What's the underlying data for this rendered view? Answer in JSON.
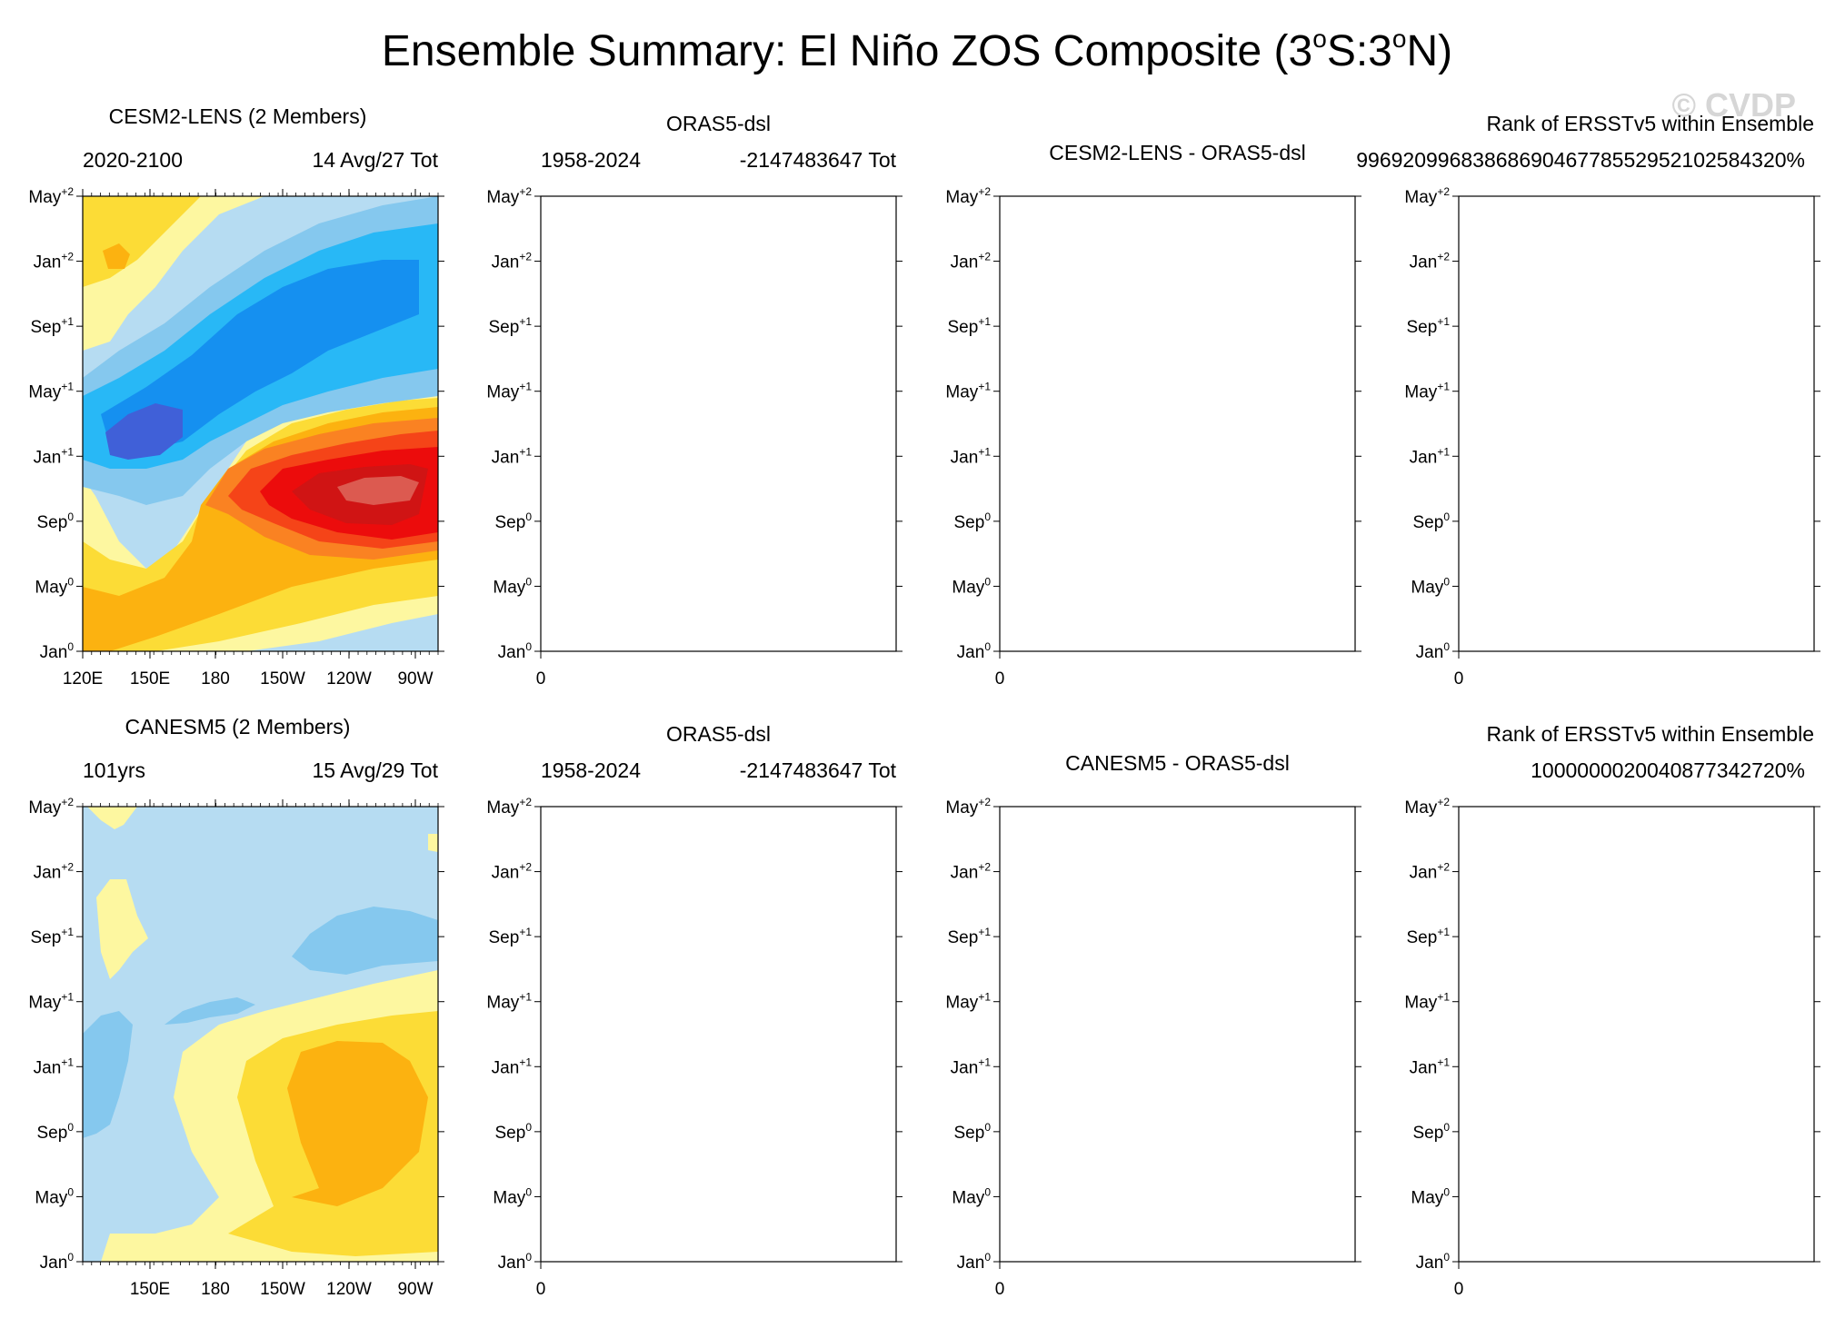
{
  "title": {
    "main": "Ensemble Summary: El Niño ZOS Composite (3",
    "deg1": "o",
    "mid": "S:3",
    "deg2": "o",
    "end": "N)"
  },
  "watermark": "© CVDP",
  "y_ticks": [
    {
      "month": "May",
      "sup": "+2"
    },
    {
      "month": "Jan",
      "sup": "+2"
    },
    {
      "month": "Sep",
      "sup": "+1"
    },
    {
      "month": "May",
      "sup": "+1"
    },
    {
      "month": "Jan",
      "sup": "+1"
    },
    {
      "month": "Sep",
      "sup": "0"
    },
    {
      "month": "May",
      "sup": "0"
    },
    {
      "month": "Jan",
      "sup": "0"
    }
  ],
  "colors": {
    "c_neg4": "#4060d8",
    "c_neg3": "#1590f0",
    "c_neg2": "#28b8f6",
    "c_neg1": "#85c8ee",
    "c_neg0": "#b6dcf2",
    "c_pos0": "#fdf7a0",
    "c_pos1": "#fcdc36",
    "c_pos2": "#fcb210",
    "c_pos3": "#fa8222",
    "c_pos4": "#f54418",
    "c_pos5": "#ec0c0c",
    "c_pos6": "#d01414",
    "c_pos7": "#dc5a50"
  },
  "rows": [
    {
      "model": {
        "title": "CESM2-LENS (2 Members)",
        "title_color": "#1e6e96",
        "left_label": "2020-2100",
        "right_label": "14 Avg/27 Tot",
        "x_ticks": [
          "120E",
          "150E",
          "180",
          "150W",
          "120W",
          "90W"
        ]
      },
      "obs": {
        "title": "ORAS5-dsl",
        "left_label": "1958-2024",
        "right_label": "-2147483647 Tot",
        "x_tick": "0"
      },
      "diff": {
        "title": "CESM2-LENS - ORAS5-dsl",
        "x_tick": "0"
      },
      "rank": {
        "title": "Rank of ERSSTv5 within Ensemble",
        "value": "996920996838686904677855295210258432­0%",
        "x_tick": "0"
      }
    },
    {
      "model": {
        "title": "CANESM5 (2 Members)",
        "title_color": "#5a8a5a",
        "left_label": "101yrs",
        "right_label": "15 Avg/29 Tot",
        "x_ticks": [
          "150E",
          "180",
          "150W",
          "120W",
          "90W"
        ]
      },
      "obs": {
        "title": "ORAS5-dsl",
        "left_label": "1958-2024",
        "right_label": "-2147483647 Tot",
        "x_tick": "0"
      },
      "diff": {
        "title": "CANESM5 - ORAS5-dsl",
        "x_tick": "0"
      },
      "rank": {
        "title": "Rank of ERSSTv5 within Ensemble",
        "value": "1000000020040877342720%",
        "x_tick": "0"
      }
    }
  ],
  "chart_data": [
    {
      "type": "heatmap",
      "title": "CESM2-LENS (2 Members)",
      "x_axis": [
        "120E",
        "150E",
        "180",
        "150W",
        "120W",
        "90W"
      ],
      "y_axis": [
        "Jan0",
        "May0",
        "Sep0",
        "Jan+1",
        "May+1",
        "Sep+1",
        "Jan+2",
        "May+2"
      ],
      "description_levels": "negative anomalies (blue) in west after Sep0, strong positive (red) in east from May0 to May+1, negative across basin in year +1"
    },
    {
      "type": "heatmap",
      "title": "CANESM5 (2 Members)",
      "x_axis": [
        "150E",
        "180",
        "150W",
        "120W",
        "90W"
      ],
      "y_axis": [
        "Jan0",
        "May0",
        "Sep0",
        "Jan+1",
        "May+1",
        "Sep+1",
        "Jan+2",
        "May+2"
      ],
      "description_levels": "weak negative (light blue) background, positive (yellow/orange) in central-east Pacific from May0 to Jan+1"
    }
  ]
}
